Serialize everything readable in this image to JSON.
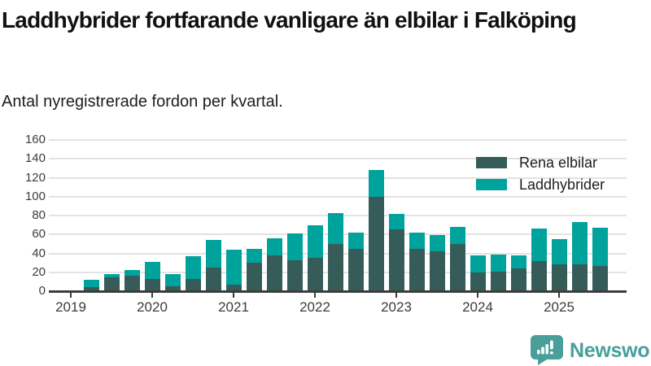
{
  "header": {
    "title": "Laddhybrider fortfarande vanligare än elbilar i Falköping",
    "subtitle": "Antal nyregistrerade fordon per kvartal."
  },
  "chart_data": {
    "type": "bar",
    "stacked": true,
    "title": "Laddhybrider fortfarande vanligare än elbilar i Falköping",
    "subtitle": "Antal nyregistrerade fordon per kvartal.",
    "categories": [
      "2019 Q2",
      "2019 Q3",
      "2019 Q4",
      "2020 Q1",
      "2020 Q2",
      "2020 Q3",
      "2020 Q4",
      "2021 Q1",
      "2021 Q2",
      "2021 Q3",
      "2021 Q4",
      "2022 Q1",
      "2022 Q2",
      "2022 Q3",
      "2022 Q4",
      "2023 Q1",
      "2023 Q2",
      "2023 Q3",
      "2023 Q4",
      "2024 Q1",
      "2024 Q2",
      "2024 Q3",
      "2024 Q4",
      "2025 Q1",
      "2025 Q2",
      "2025 Q3"
    ],
    "series": [
      {
        "name": "Rena elbilar",
        "color": "#365c5a",
        "values": [
          4,
          15,
          16,
          13,
          5,
          13,
          25,
          7,
          30,
          38,
          33,
          35,
          50,
          45,
          100,
          65,
          45,
          42,
          50,
          20,
          21,
          24,
          32,
          28,
          28,
          27
        ]
      },
      {
        "name": "Laddhybrider",
        "color": "#00a39c",
        "values": [
          8,
          3,
          6,
          18,
          13,
          24,
          29,
          37,
          15,
          18,
          28,
          35,
          33,
          17,
          28,
          17,
          17,
          17,
          18,
          18,
          18,
          14,
          34,
          27,
          45,
          40
        ]
      }
    ],
    "x_tick_labels": [
      "2019",
      "2020",
      "2021",
      "2022",
      "2023",
      "2024",
      "2025"
    ],
    "y_ticks": [
      0,
      20,
      40,
      60,
      80,
      100,
      120,
      140,
      160
    ],
    "ylim": [
      0,
      160
    ],
    "xlabel": "",
    "ylabel": "",
    "grid": "horizontal",
    "legend_position": "top-right"
  },
  "footer": {
    "brand": "Newsworthy"
  },
  "colors": {
    "accent_teal": "#00a39c",
    "dark_slate": "#365c5a",
    "gridline": "#e3e3e3",
    "axis": "#3c3c3c",
    "logo_teal": "#4a9f9a"
  }
}
